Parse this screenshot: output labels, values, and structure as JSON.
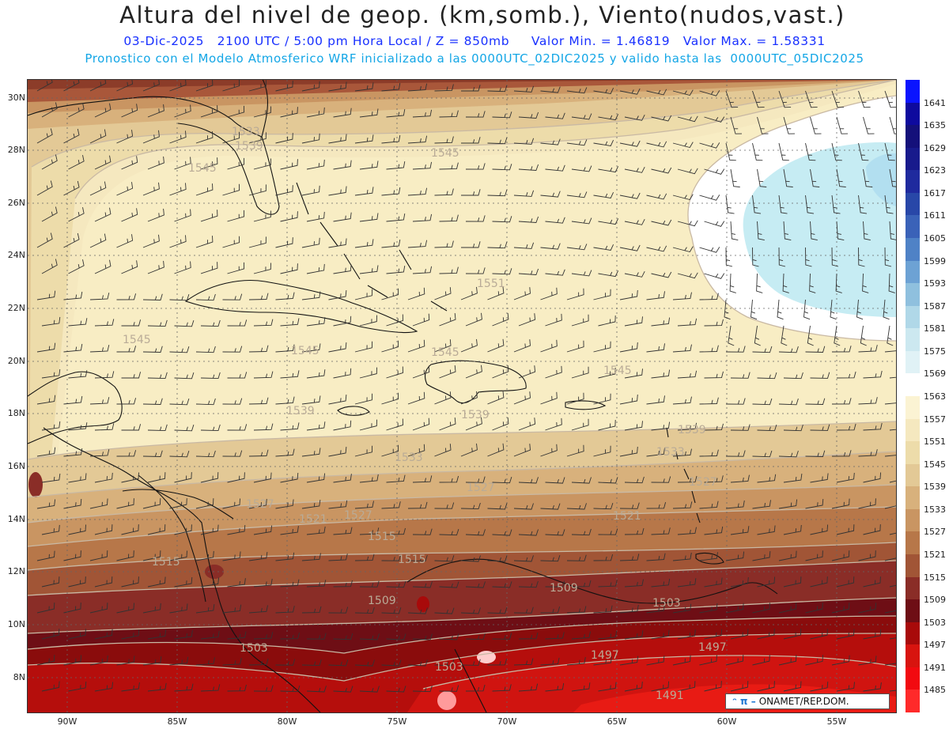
{
  "header": {
    "title": "Altura del nivel de geop. (km,somb.), Viento(nudos,vast.)",
    "subtitle": "03-Dic-2025   2100 UTC / 5:00 pm Hora Local / Z = 850mb     Valor Min. = 1.46819   Valor Max. = 1.58331",
    "info": "Pronostico con el Modelo Atmosferico WRF inicializado a las 0000UTC_02DIC2025 y valido hasta las  0000UTC_05DIC2025"
  },
  "map": {
    "lat_labels": [
      "30N",
      "28N",
      "26N",
      "24N",
      "22N",
      "20N",
      "18N",
      "16N",
      "14N",
      "12N",
      "10N",
      "8N"
    ],
    "lon_labels": [
      "90W",
      "85W",
      "80W",
      "75W",
      "70W",
      "65W",
      "60W",
      "55W"
    ],
    "contour_labels": [
      {
        "text": "1533"
      },
      {
        "text": "1539"
      },
      {
        "text": "1545"
      },
      {
        "text": "1545"
      },
      {
        "text": "1551"
      },
      {
        "text": "1545"
      },
      {
        "text": "1545"
      },
      {
        "text": "1545"
      },
      {
        "text": "1545"
      },
      {
        "text": "1539"
      },
      {
        "text": "1539"
      },
      {
        "text": "1539"
      },
      {
        "text": "1533"
      },
      {
        "text": "1533"
      },
      {
        "text": "1527"
      },
      {
        "text": "1527"
      },
      {
        "text": "1527"
      },
      {
        "text": "1527"
      },
      {
        "text": "1521"
      },
      {
        "text": "1521"
      },
      {
        "text": "1515"
      },
      {
        "text": "1515"
      },
      {
        "text": "1515"
      },
      {
        "text": "1509"
      },
      {
        "text": "1509"
      },
      {
        "text": "1503"
      },
      {
        "text": "1503"
      },
      {
        "text": "1503"
      },
      {
        "text": "1497"
      },
      {
        "text": "1497"
      },
      {
        "text": "1491"
      }
    ],
    "logo_text": "ONAMET/REP.DOM.",
    "logo_mark": "ᵔ π –"
  },
  "colorbar": {
    "levels": [
      "1641",
      "1635",
      "1629",
      "1623",
      "1617",
      "1611",
      "1605",
      "1599",
      "1593",
      "1587",
      "1581",
      "1575",
      "1569",
      "1563",
      "1557",
      "1551",
      "1545",
      "1539",
      "1533",
      "1527",
      "1521",
      "1515",
      "1509",
      "1503",
      "1497",
      "1491",
      "1485"
    ],
    "colors": [
      "#0a14ff",
      "#0e0a9e",
      "#14107a",
      "#181a8c",
      "#1f2a9e",
      "#2847a8",
      "#3a62b8",
      "#4f82c6",
      "#6da2d4",
      "#8fc0de",
      "#b0d8e8",
      "#cce8f0",
      "#e0f2f6",
      "#ffffff",
      "#fbf3d3",
      "#f5e8bf",
      "#eddcaa",
      "#e3c996",
      "#d8b17c",
      "#c99562",
      "#b77749",
      "#a15536",
      "#8a2d27",
      "#6e0e15",
      "#a80a0a",
      "#d8140f",
      "#f20a10",
      "#ff2a2a"
    ]
  }
}
